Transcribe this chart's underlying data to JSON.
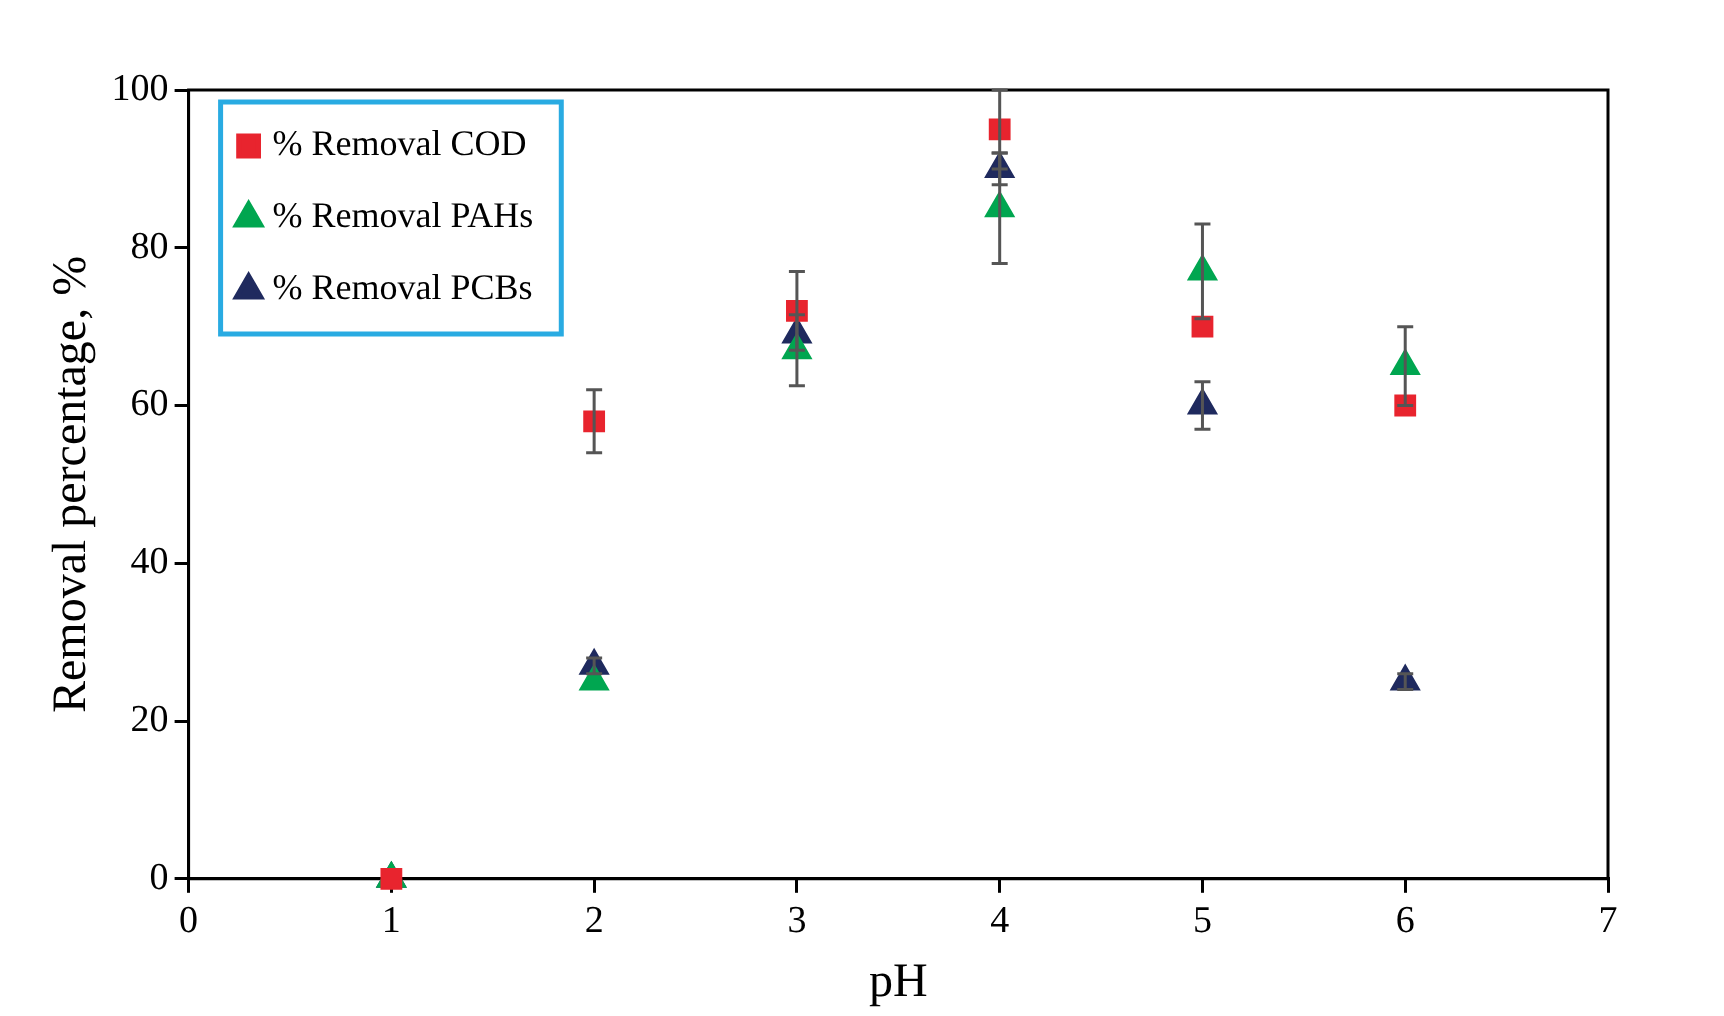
{
  "chart_data": {
    "type": "scatter",
    "xlabel": "pH",
    "ylabel": "Removal percentage, %",
    "x": [
      1,
      2,
      3,
      4,
      5,
      6
    ],
    "series": [
      {
        "name": "% Removal COD",
        "color": "#e8242e",
        "marker": "square",
        "values": [
          0,
          58,
          72,
          95,
          70,
          60
        ],
        "errors": [
          null,
          4,
          5,
          5,
          null,
          null
        ]
      },
      {
        "name": "% Removal PAHs",
        "color": "#00a650",
        "marker": "triangle",
        "values": [
          0,
          25,
          67,
          85,
          77,
          65
        ],
        "errors": [
          null,
          null,
          4.5,
          7,
          6,
          5
        ]
      },
      {
        "name": "% Removal PCBs",
        "color": "#1f2a5e",
        "marker": "triangle",
        "values": [
          0,
          27,
          69,
          90,
          60,
          25
        ],
        "errors": [
          null,
          1,
          null,
          2,
          3,
          1
        ]
      }
    ],
    "xlim": [
      0,
      7
    ],
    "xticks": [
      0,
      1,
      2,
      3,
      4,
      5,
      6,
      7
    ],
    "ylim": [
      0,
      100
    ],
    "yticks": [
      0,
      20,
      40,
      60,
      80,
      100
    ],
    "grid": false,
    "legend": "top left"
  }
}
